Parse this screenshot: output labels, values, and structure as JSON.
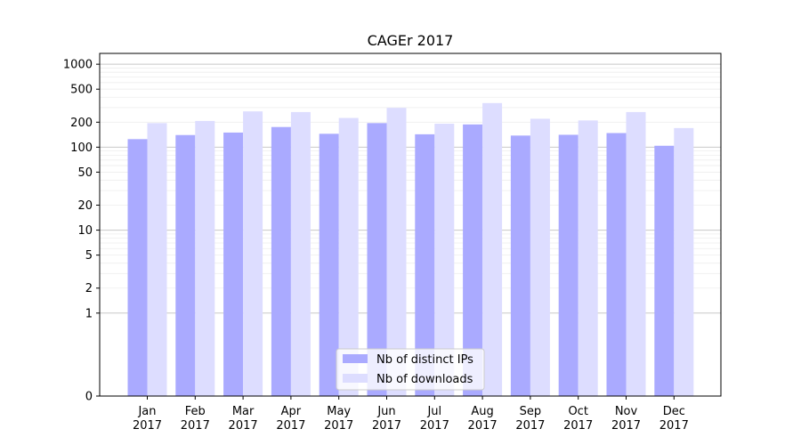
{
  "chart_data": {
    "type": "bar",
    "title": "CAGEr 2017",
    "xlabel": "",
    "ylabel": "",
    "scale": "symlog",
    "ylim": [
      0,
      1350
    ],
    "yticks": [
      0,
      1,
      2,
      5,
      10,
      20,
      50,
      100,
      200,
      500,
      1000
    ],
    "ytick_labels": [
      "0",
      "1",
      "2",
      "5",
      "10",
      "20",
      "50",
      "100",
      "200",
      "500",
      "1000"
    ],
    "categories": [
      "Jan\n2017",
      "Feb\n2017",
      "Mar\n2017",
      "Apr\n2017",
      "May\n2017",
      "Jun\n2017",
      "Jul\n2017",
      "Aug\n2017",
      "Sep\n2017",
      "Oct\n2017",
      "Nov\n2017",
      "Dec\n2017"
    ],
    "series": [
      {
        "name": "Nb of distinct IPs",
        "color": "#aaaaff",
        "values": [
          125,
          140,
          150,
          175,
          145,
          195,
          143,
          188,
          138,
          141,
          148,
          104
        ]
      },
      {
        "name": "Nb of downloads",
        "color": "#ddddff",
        "values": [
          195,
          207,
          270,
          265,
          225,
          298,
          192,
          340,
          220,
          210,
          265,
          170
        ]
      }
    ],
    "grid": true,
    "legend_position": "lower-center"
  }
}
